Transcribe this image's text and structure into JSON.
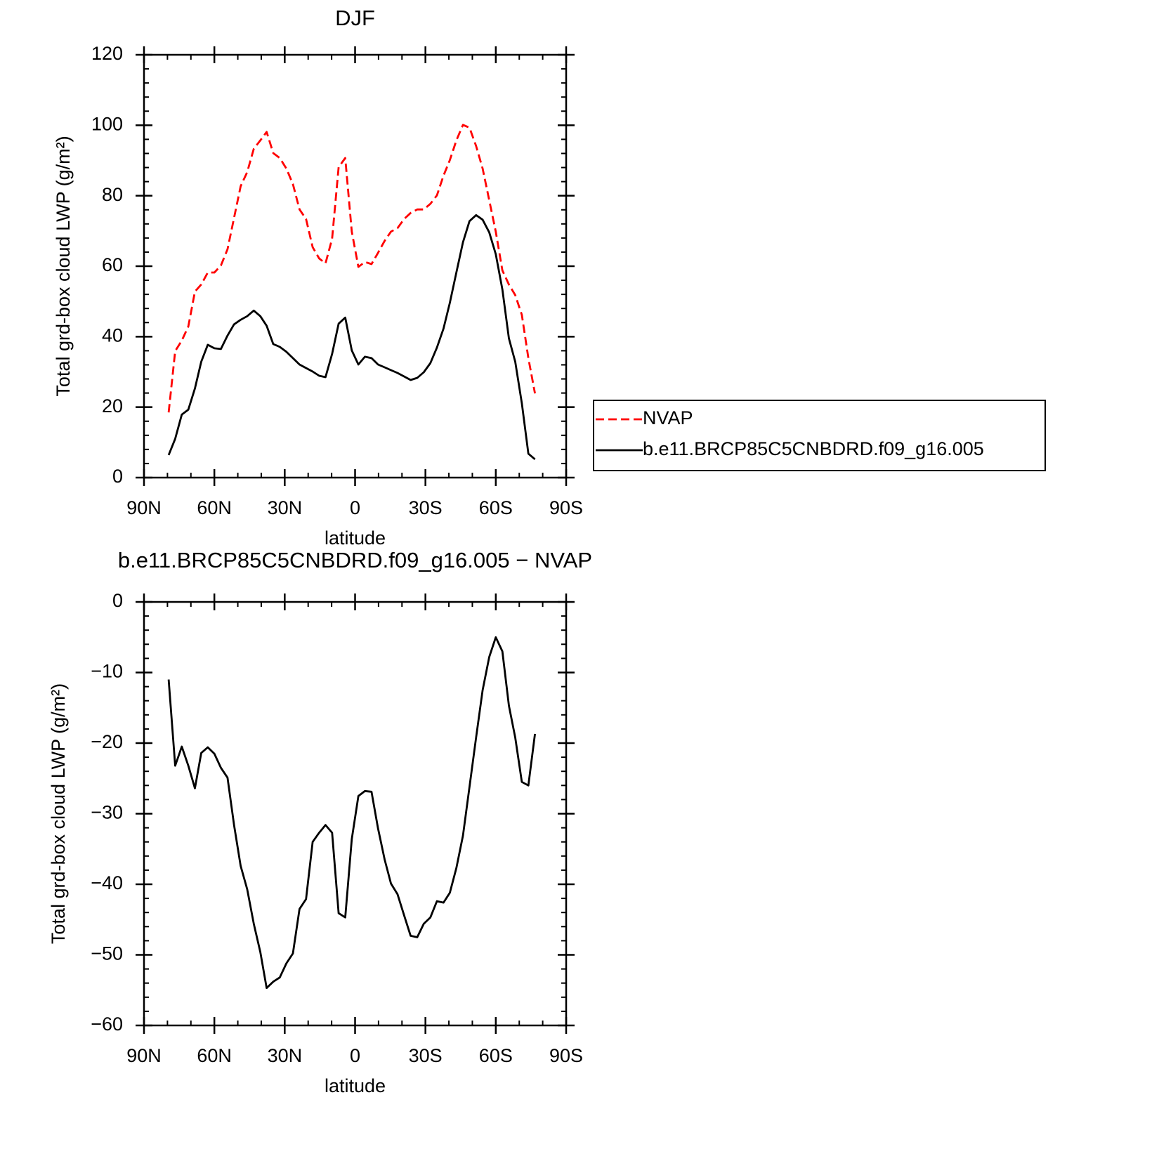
{
  "chart_data": [
    {
      "type": "line",
      "title": "DJF",
      "ylabel": "Total grd-box cloud LWP (g/m²)",
      "xlabel": "latitude",
      "xlim": [
        90,
        -90
      ],
      "xticks": [
        {
          "value": 90,
          "label": "90N"
        },
        {
          "value": 60,
          "label": "60N"
        },
        {
          "value": 30,
          "label": "30N"
        },
        0,
        {
          "value": -30,
          "label": "30S"
        },
        {
          "value": -60,
          "label": "60S"
        },
        {
          "value": -90,
          "label": "90S"
        }
      ],
      "ylim": [
        0,
        120
      ],
      "yticks": [
        0,
        20,
        40,
        60,
        80,
        100,
        120
      ],
      "legend": "right",
      "x": [
        79.5,
        76.7,
        73.9,
        71.1,
        68.3,
        65.6,
        62.8,
        60.0,
        57.2,
        54.4,
        51.6,
        48.8,
        46.0,
        43.2,
        40.4,
        37.7,
        34.9,
        32.1,
        29.3,
        26.5,
        23.7,
        20.9,
        18.1,
        15.3,
        12.6,
        9.8,
        7.0,
        4.2,
        1.4,
        -1.4,
        -4.2,
        -7.0,
        -9.8,
        -12.6,
        -15.3,
        -18.1,
        -20.9,
        -23.7,
        -26.5,
        -29.3,
        -32.1,
        -34.9,
        -37.7,
        -40.4,
        -43.2,
        -46.0,
        -48.8,
        -51.6,
        -54.4,
        -57.2,
        -60.0,
        -62.8,
        -65.6,
        -68.3,
        -71.1,
        -73.9,
        -76.7
      ],
      "series": [
        {
          "name": "NVAP",
          "color": "#ff0000",
          "linestyle": "dashed",
          "values": [
            18.5,
            35.9,
            38.9,
            42.9,
            52.8,
            54.8,
            58.2,
            58.2,
            60.2,
            64.8,
            73.7,
            82.7,
            86.7,
            93.3,
            95.7,
            98.1,
            92.1,
            90.7,
            87.7,
            83.3,
            76.1,
            73.4,
            65.4,
            62.2,
            60.8,
            67.8,
            88.1,
            90.7,
            69.8,
            59.8,
            61.2,
            60.6,
            63.8,
            67.2,
            69.8,
            70.8,
            73.4,
            75.1,
            76.1,
            76.1,
            77.7,
            80.1,
            85.7,
            90.1,
            95.7,
            100.1,
            99.3,
            94.1,
            87.7,
            78.7,
            69.8,
            58.8,
            54.8,
            51.8,
            46.2,
            33.9,
            23.9
          ]
        },
        {
          "name": "b.e11.BRCP85C5CNBDRD.f09_g16.005",
          "color": "#000000",
          "linestyle": "solid",
          "values": [
            6.4,
            11.0,
            17.9,
            19.3,
            25.3,
            32.9,
            37.7,
            36.7,
            36.5,
            40.3,
            43.5,
            44.8,
            45.8,
            47.4,
            45.8,
            43.1,
            37.9,
            37.1,
            35.7,
            33.9,
            32.1,
            31.1,
            30.1,
            28.9,
            28.5,
            35.1,
            43.7,
            45.4,
            36.1,
            32.1,
            34.3,
            33.9,
            32.1,
            31.3,
            30.5,
            29.7,
            28.7,
            27.7,
            28.3,
            29.9,
            32.5,
            36.9,
            42.3,
            49.6,
            58.2,
            66.8,
            72.8,
            74.5,
            73.2,
            69.6,
            63.4,
            53.4,
            39.5,
            32.9,
            21.1,
            6.8,
            5.2
          ]
        }
      ]
    },
    {
      "type": "line",
      "title": "b.e11.BRCP85C5CNBDRD.f09_g16.005 − NVAP",
      "ylabel": "Total grd-box cloud LWP (g/m²)",
      "xlabel": "latitude",
      "xlim": [
        90,
        -90
      ],
      "xticks": [
        {
          "value": 90,
          "label": "90N"
        },
        {
          "value": 60,
          "label": "60N"
        },
        {
          "value": 30,
          "label": "30N"
        },
        0,
        {
          "value": -30,
          "label": "30S"
        },
        {
          "value": -60,
          "label": "60S"
        },
        {
          "value": -90,
          "label": "90S"
        }
      ],
      "ylim": [
        -60,
        0
      ],
      "yticks": [
        {
          "value": -60,
          "label": "−60"
        },
        {
          "value": -50,
          "label": "−50"
        },
        {
          "value": -40,
          "label": "−40"
        },
        {
          "value": -30,
          "label": "−30"
        },
        {
          "value": -20,
          "label": "−20"
        },
        {
          "value": -10,
          "label": "−10"
        },
        0
      ],
      "x": [
        79.5,
        76.7,
        73.9,
        71.1,
        68.3,
        65.6,
        62.8,
        60.0,
        57.2,
        54.4,
        51.6,
        48.8,
        46.0,
        43.2,
        40.4,
        37.7,
        34.9,
        32.1,
        29.3,
        26.5,
        23.7,
        20.9,
        18.1,
        15.3,
        12.6,
        9.8,
        7.0,
        4.2,
        1.4,
        -1.4,
        -4.2,
        -7.0,
        -9.8,
        -12.6,
        -15.3,
        -18.1,
        -20.9,
        -23.7,
        -26.5,
        -29.3,
        -32.1,
        -34.9,
        -37.7,
        -40.4,
        -43.2,
        -46.0,
        -48.8,
        -51.6,
        -54.4,
        -57.2,
        -60.0,
        -62.8,
        -65.6,
        -68.3,
        -71.1,
        -73.9,
        -76.7
      ],
      "color": "#000000",
      "values": [
        -11.0,
        -23.2,
        -20.5,
        -23.2,
        -26.4,
        -21.4,
        -20.6,
        -21.5,
        -23.5,
        -24.9,
        -31.6,
        -37.4,
        -40.7,
        -45.6,
        -49.6,
        -54.7,
        -53.8,
        -53.2,
        -51.2,
        -49.8,
        -43.5,
        -42.1,
        -34.0,
        -32.7,
        -31.6,
        -32.7,
        -44.1,
        -44.7,
        -33.6,
        -27.5,
        -26.8,
        -26.9,
        -32.1,
        -36.5,
        -39.9,
        -41.4,
        -44.4,
        -47.3,
        -47.5,
        -45.6,
        -44.7,
        -42.4,
        -42.6,
        -41.2,
        -37.7,
        -33.1,
        -26.2,
        -19.2,
        -12.5,
        -7.8,
        -5.0,
        -7.0,
        -14.7,
        -19.2,
        -25.5,
        -26.0,
        -18.7
      ]
    }
  ]
}
